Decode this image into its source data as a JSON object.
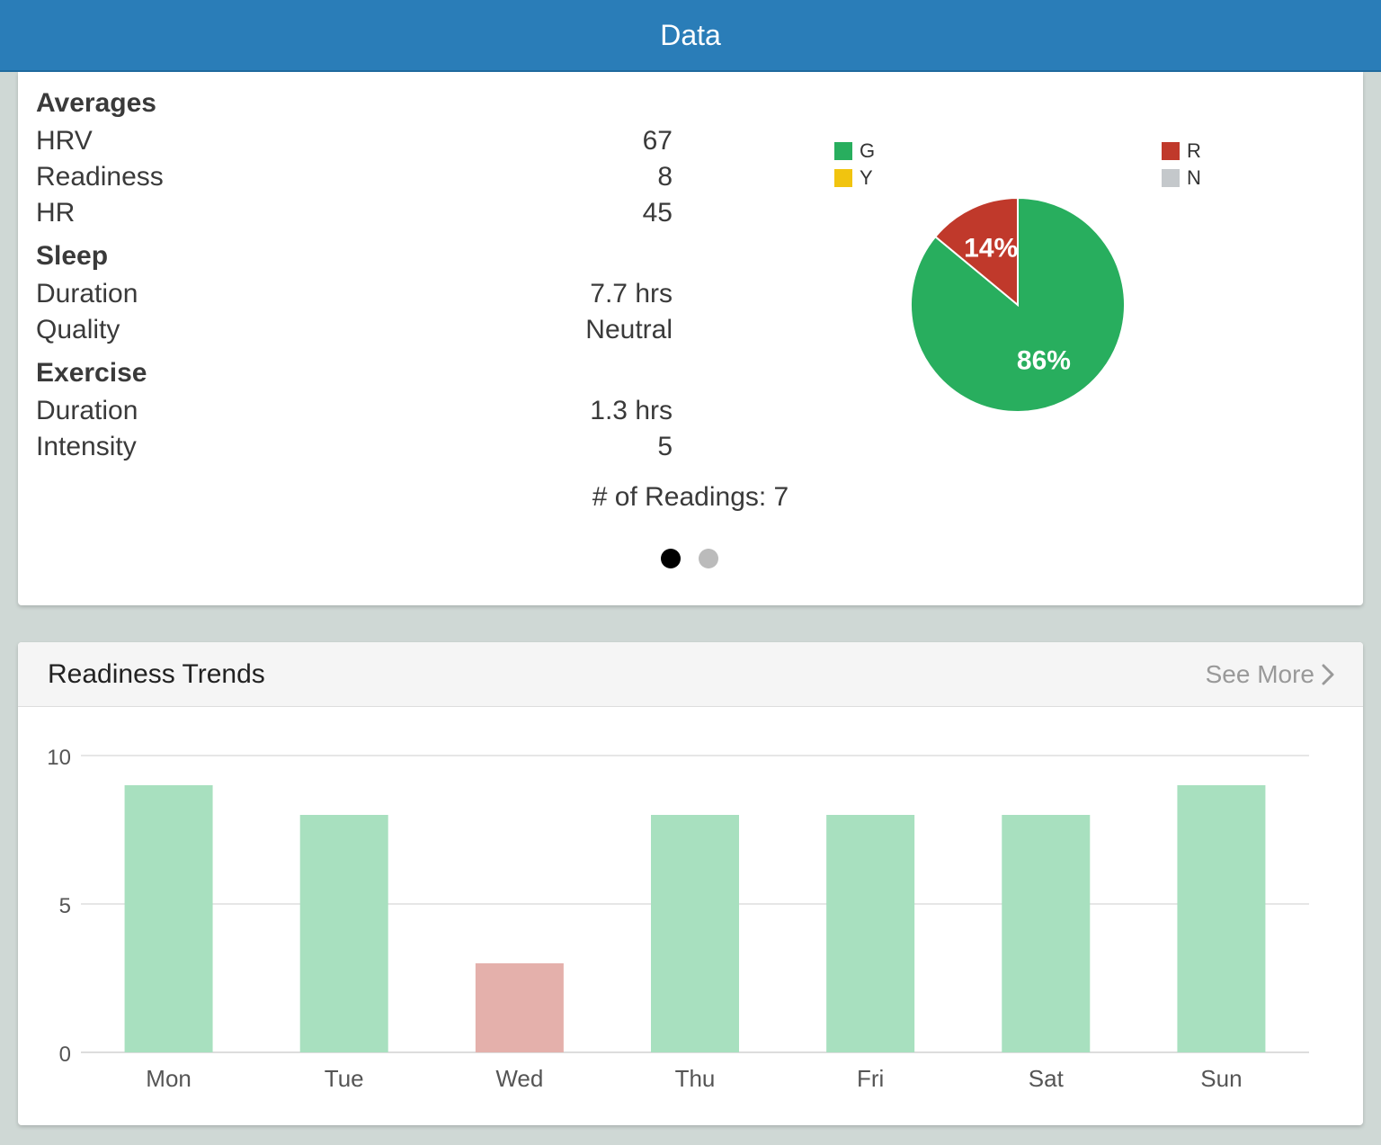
{
  "header": {
    "title": "Data"
  },
  "averages": {
    "title": "Averages",
    "rows": [
      {
        "label": "HRV",
        "value": "67"
      },
      {
        "label": "Readiness",
        "value": "8"
      },
      {
        "label": "HR",
        "value": "45"
      }
    ]
  },
  "sleep": {
    "title": "Sleep",
    "rows": [
      {
        "label": "Duration",
        "value": "7.7 hrs"
      },
      {
        "label": "Quality",
        "value": "Neutral"
      }
    ]
  },
  "exercise": {
    "title": "Exercise",
    "rows": [
      {
        "label": "Duration",
        "value": "1.3 hrs"
      },
      {
        "label": "Intensity",
        "value": "5"
      }
    ]
  },
  "readings": {
    "text": "# of Readings: 7"
  },
  "pager": {
    "count": 2,
    "active": 0
  },
  "colors": {
    "green": "#28ae5e",
    "red": "#c0392b",
    "yellow": "#f1c40f",
    "gray": "#c4c8cb",
    "bar_green": "#a8e0bf",
    "bar_red": "#e4b0ab",
    "navbar": "#2a7db8"
  },
  "trends": {
    "title": "Readiness Trends",
    "see_more": "See More",
    "see_more_icon": "chevron-right-icon"
  },
  "chart_data": [
    {
      "type": "pie",
      "legend": [
        {
          "label": "G",
          "color": "#28ae5e"
        },
        {
          "label": "Y",
          "color": "#f1c40f"
        },
        {
          "label": "R",
          "color": "#c0392b"
        },
        {
          "label": "N",
          "color": "#c4c8cb"
        }
      ],
      "slices": [
        {
          "label": "G",
          "value": 86,
          "display": "86%",
          "color": "#28ae5e"
        },
        {
          "label": "R",
          "value": 14,
          "display": "14%",
          "color": "#c0392b"
        }
      ]
    },
    {
      "type": "bar",
      "categories": [
        "Mon",
        "Tue",
        "Wed",
        "Thu",
        "Fri",
        "Sat",
        "Sun"
      ],
      "values": [
        9,
        8,
        3,
        8,
        8,
        8,
        9
      ],
      "bar_colors": [
        "#a8e0bf",
        "#a8e0bf",
        "#e4b0ab",
        "#a8e0bf",
        "#a8e0bf",
        "#a8e0bf",
        "#a8e0bf"
      ],
      "ylim": [
        0,
        10
      ],
      "yticks": [
        0,
        5,
        10
      ],
      "grid": true
    }
  ]
}
